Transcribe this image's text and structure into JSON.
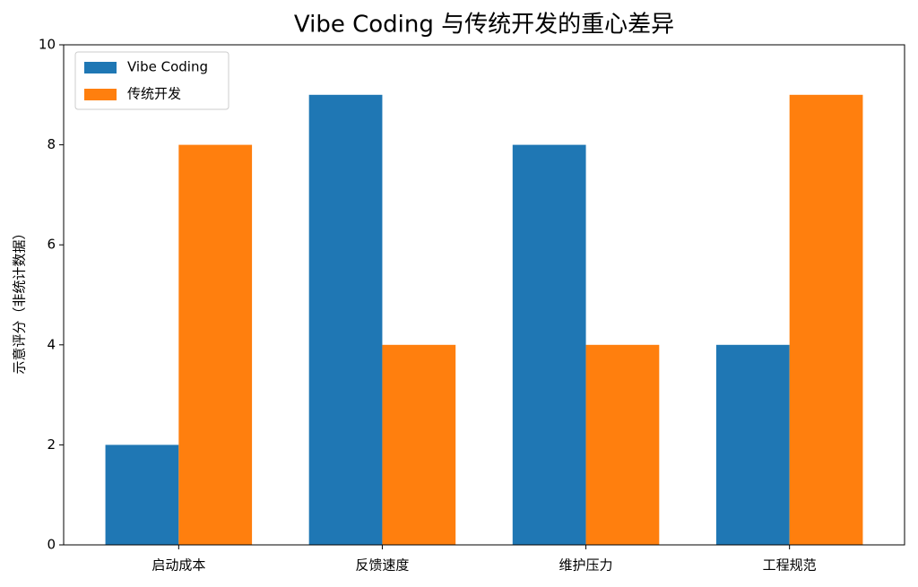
{
  "chart_data": {
    "type": "bar",
    "title": "Vibe Coding 与传统开发的重心差异",
    "y_label": "示意评分（非统计数据）",
    "categories": [
      "启动成本",
      "反馈速度",
      "维护压力",
      "工程规范"
    ],
    "series": [
      {
        "name": "Vibe Coding",
        "color": "#1f77b4",
        "values": [
          2,
          9,
          8,
          4
        ]
      },
      {
        "name": "传统开发",
        "color": "#ff7f0e",
        "values": [
          8,
          4,
          4,
          9
        ]
      }
    ],
    "ylim": [
      0,
      10
    ],
    "yticks": [
      0,
      2,
      4,
      6,
      8,
      10
    ],
    "grid": false,
    "legend": "upper left"
  }
}
